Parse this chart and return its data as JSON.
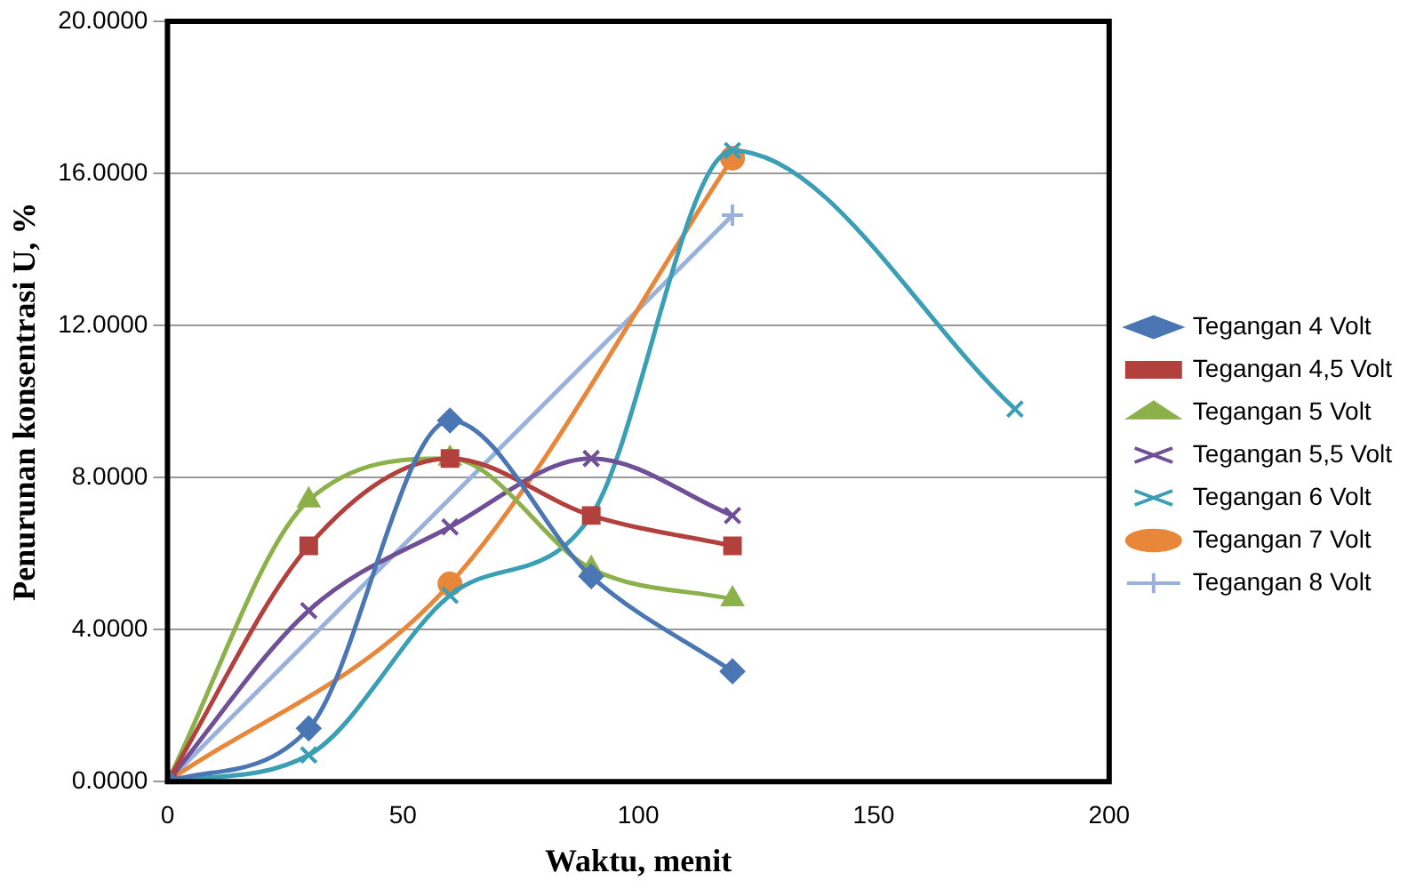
{
  "chart_data": {
    "type": "line",
    "xlabel": "Waktu, menit",
    "ylabel": "Penurunan konsentrasi U, %",
    "xlim": [
      0,
      200
    ],
    "xticks": [
      0,
      50,
      100,
      150,
      200
    ],
    "ylim": [
      0,
      20
    ],
    "yticks": [
      {
        "value": 0,
        "label": "0.0000"
      },
      {
        "value": 4,
        "label": "4.0000"
      },
      {
        "value": 8,
        "label": "8.0000"
      },
      {
        "value": 12,
        "label": "12.0000"
      },
      {
        "value": 16,
        "label": "16.0000"
      },
      {
        "value": 20,
        "label": "20.0000"
      }
    ],
    "grid": "y",
    "legend": "right",
    "line_style": "solid",
    "series": [
      {
        "name": "Tegangan 4 Volt",
        "color": "#4a76b4",
        "marker": "diamond",
        "x": [
          0,
          30,
          60,
          90,
          120
        ],
        "values": [
          0,
          1.4,
          9.5,
          5.4,
          2.9
        ]
      },
      {
        "name": "Tegangan 4,5 Volt",
        "color": "#b2403d",
        "marker": "square",
        "x": [
          0,
          30,
          60,
          90,
          120
        ],
        "values": [
          0,
          6.2,
          8.5,
          7.0,
          6.2
        ]
      },
      {
        "name": "Tegangan 5 Volt",
        "color": "#8cb04a",
        "marker": "triangle",
        "x": [
          0,
          30,
          60,
          90,
          120
        ],
        "values": [
          0,
          7.4,
          8.5,
          5.6,
          4.8
        ]
      },
      {
        "name": "Tegangan 5,5 Volt",
        "color": "#6f4f95",
        "marker": "cross",
        "x": [
          0,
          30,
          60,
          90,
          120
        ],
        "values": [
          0,
          4.5,
          6.7,
          8.5,
          7.0
        ]
      },
      {
        "name": "Tegangan 6 Volt",
        "color": "#3a9fb5",
        "marker": "cross",
        "x": [
          0,
          30,
          60,
          90,
          120,
          180
        ],
        "values": [
          0,
          0.7,
          4.9,
          7.0,
          16.6,
          9.8
        ]
      },
      {
        "name": "Tegangan 7 Volt",
        "color": "#e8873a",
        "marker": "circle",
        "x": [
          0,
          60,
          120
        ],
        "values": [
          0,
          5.2,
          16.4
        ]
      },
      {
        "name": "Tegangan 8 Volt",
        "color": "#98b2dc",
        "marker": "plus",
        "x": [
          0,
          120
        ],
        "values": [
          0,
          14.9
        ]
      }
    ]
  }
}
